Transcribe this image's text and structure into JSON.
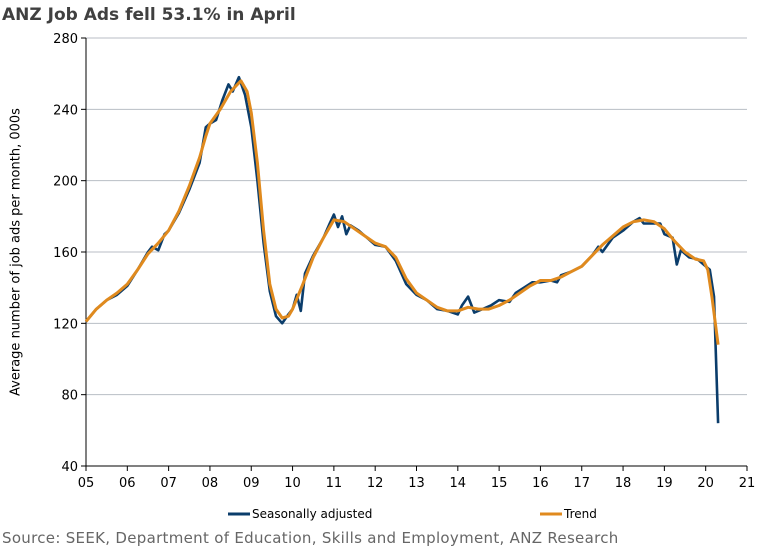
{
  "chart_data": {
    "type": "line",
    "title": "ANZ Job Ads fell 53.1% in April",
    "ylabel": "Average number of job ads per month, 000s",
    "xlabel": "",
    "xlim": [
      2005,
      2021
    ],
    "ylim": [
      40,
      280
    ],
    "yticks": [
      40,
      80,
      120,
      160,
      200,
      240,
      280
    ],
    "xtick_labels": [
      "05",
      "06",
      "07",
      "08",
      "09",
      "10",
      "11",
      "12",
      "13",
      "14",
      "15",
      "16",
      "17",
      "18",
      "19",
      "20",
      "21"
    ],
    "grid": true,
    "legend_position": "bottom",
    "series": [
      {
        "name": "Seasonally adjusted",
        "color": "#0b3d6b",
        "x": [
          2005.0,
          2005.25,
          2005.5,
          2005.75,
          2006.0,
          2006.25,
          2006.5,
          2006.6,
          2006.75,
          2006.9,
          2007.0,
          2007.25,
          2007.5,
          2007.75,
          2007.9,
          2008.0,
          2008.15,
          2008.3,
          2008.45,
          2008.55,
          2008.7,
          2008.85,
          2009.0,
          2009.15,
          2009.3,
          2009.45,
          2009.6,
          2009.75,
          2009.9,
          2010.0,
          2010.1,
          2010.2,
          2010.3,
          2010.5,
          2010.75,
          2010.9,
          2011.0,
          2011.1,
          2011.2,
          2011.3,
          2011.4,
          2011.6,
          2011.8,
          2012.0,
          2012.25,
          2012.5,
          2012.75,
          2013.0,
          2013.25,
          2013.5,
          2013.75,
          2014.0,
          2014.1,
          2014.25,
          2014.4,
          2014.6,
          2014.8,
          2015.0,
          2015.25,
          2015.4,
          2015.6,
          2015.8,
          2016.0,
          2016.25,
          2016.4,
          2016.5,
          2016.75,
          2017.0,
          2017.25,
          2017.4,
          2017.5,
          2017.75,
          2018.0,
          2018.25,
          2018.4,
          2018.5,
          2018.75,
          2018.9,
          2019.0,
          2019.2,
          2019.3,
          2019.4,
          2019.6,
          2019.8,
          2020.0,
          2020.1,
          2020.2,
          2020.3
        ],
        "values": [
          121,
          128,
          133,
          136,
          141,
          150,
          160,
          163,
          161,
          170,
          172,
          182,
          195,
          210,
          230,
          232,
          234,
          245,
          254,
          250,
          258,
          248,
          230,
          200,
          165,
          138,
          124,
          120,
          125,
          128,
          136,
          127,
          148,
          158,
          168,
          176,
          181,
          174,
          180,
          170,
          175,
          172,
          168,
          164,
          163,
          155,
          142,
          136,
          133,
          128,
          127,
          125,
          130,
          135,
          126,
          128,
          130,
          133,
          132,
          137,
          140,
          143,
          143,
          144,
          143,
          147,
          149,
          152,
          158,
          163,
          160,
          168,
          172,
          177,
          179,
          176,
          176,
          176,
          170,
          168,
          153,
          161,
          157,
          156,
          152,
          150,
          135,
          64
        ]
      },
      {
        "name": "Trend",
        "color": "#e08a1e",
        "x": [
          2005.0,
          2005.25,
          2005.5,
          2005.75,
          2006.0,
          2006.25,
          2006.5,
          2006.75,
          2007.0,
          2007.25,
          2007.5,
          2007.75,
          2007.9,
          2008.0,
          2008.25,
          2008.5,
          2008.75,
          2008.9,
          2009.0,
          2009.15,
          2009.3,
          2009.45,
          2009.6,
          2009.75,
          2009.9,
          2010.0,
          2010.25,
          2010.5,
          2010.75,
          2011.0,
          2011.25,
          2011.5,
          2011.75,
          2012.0,
          2012.25,
          2012.5,
          2012.75,
          2013.0,
          2013.25,
          2013.5,
          2013.75,
          2014.0,
          2014.25,
          2014.5,
          2014.75,
          2015.0,
          2015.25,
          2015.5,
          2015.75,
          2016.0,
          2016.25,
          2016.5,
          2016.75,
          2017.0,
          2017.25,
          2017.5,
          2017.75,
          2018.0,
          2018.25,
          2018.5,
          2018.75,
          2019.0,
          2019.25,
          2019.5,
          2019.75,
          2019.95,
          2020.05,
          2020.15,
          2020.3
        ],
        "values": [
          121,
          128,
          133,
          137,
          142,
          150,
          159,
          165,
          172,
          183,
          197,
          213,
          225,
          232,
          240,
          250,
          256,
          250,
          238,
          210,
          172,
          142,
          128,
          123,
          124,
          128,
          142,
          157,
          168,
          178,
          177,
          173,
          169,
          165,
          163,
          157,
          145,
          137,
          133,
          129,
          127,
          127,
          129,
          128,
          128,
          130,
          133,
          137,
          141,
          144,
          144,
          146,
          149,
          152,
          158,
          164,
          169,
          174,
          177,
          178,
          177,
          173,
          166,
          160,
          156,
          155,
          150,
          135,
          108
        ]
      }
    ]
  },
  "legend": [
    "Seasonally adjusted",
    "Trend"
  ],
  "source": "Source: SEEK, Department of Education, Skills and Employment, ANZ Research"
}
